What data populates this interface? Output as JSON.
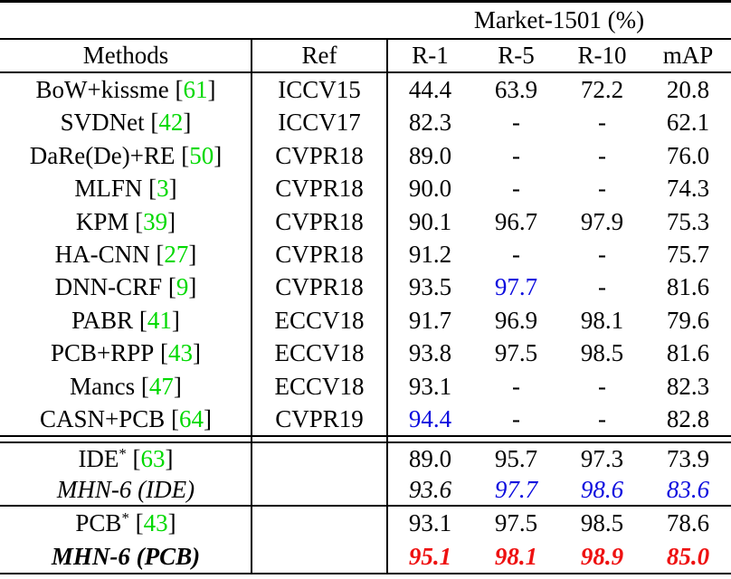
{
  "table": {
    "group_header": "Market-1501 (%)",
    "columns": [
      "Methods",
      "Ref",
      "R-1",
      "R-5",
      "R-10",
      "mAP"
    ],
    "colors": {
      "citation_green": "#00D900",
      "second_best_blue": "#0B0BDE",
      "best_red": "#EE1111",
      "text_black": "#000000",
      "background": "#ffffff"
    },
    "sections": [
      {
        "rows": [
          {
            "method": "BoW+kissme",
            "sup": "",
            "open": " [",
            "cite": "61",
            "close": "]",
            "ref": "ICCV15",
            "values": [
              "44.4",
              "63.9",
              "72.2",
              "20.8"
            ],
            "value_classes": [
              "",
              "",
              "",
              ""
            ],
            "row_class": ""
          },
          {
            "method": "SVDNet",
            "sup": "",
            "open": " [",
            "cite": "42",
            "close": "]",
            "ref": "ICCV17",
            "values": [
              "82.3",
              "-",
              "-",
              "62.1"
            ],
            "value_classes": [
              "",
              "",
              "",
              ""
            ],
            "row_class": ""
          },
          {
            "method": "DaRe(De)+RE",
            "sup": "",
            "open": " [",
            "cite": "50",
            "close": "]",
            "ref": "CVPR18",
            "values": [
              "89.0",
              "-",
              "-",
              "76.0"
            ],
            "value_classes": [
              "",
              "",
              "",
              ""
            ],
            "row_class": ""
          },
          {
            "method": "MLFN",
            "sup": "",
            "open": " [",
            "cite": "3",
            "close": "]",
            "ref": "CVPR18",
            "values": [
              "90.0",
              "-",
              "-",
              "74.3"
            ],
            "value_classes": [
              "",
              "",
              "",
              ""
            ],
            "row_class": ""
          },
          {
            "method": "KPM",
            "sup": "",
            "open": " [",
            "cite": "39",
            "close": "]",
            "ref": "CVPR18",
            "values": [
              "90.1",
              "96.7",
              "97.9",
              "75.3"
            ],
            "value_classes": [
              "",
              "",
              "",
              ""
            ],
            "row_class": ""
          },
          {
            "method": "HA-CNN",
            "sup": "",
            "open": " [",
            "cite": "27",
            "close": "]",
            "ref": "CVPR18",
            "values": [
              "91.2",
              "-",
              "-",
              "75.7"
            ],
            "value_classes": [
              "",
              "",
              "",
              ""
            ],
            "row_class": ""
          },
          {
            "method": "DNN-CRF",
            "sup": "",
            "open": " [",
            "cite": "9",
            "close": "]",
            "ref": "CVPR18",
            "values": [
              "93.5",
              "97.7",
              "-",
              "81.6"
            ],
            "value_classes": [
              "",
              "second",
              "",
              ""
            ],
            "row_class": ""
          },
          {
            "method": "PABR",
            "sup": "",
            "open": " [",
            "cite": "41",
            "close": "]",
            "ref": "ECCV18",
            "values": [
              "91.7",
              "96.9",
              "98.1",
              "79.6"
            ],
            "value_classes": [
              "",
              "",
              "",
              ""
            ],
            "row_class": ""
          },
          {
            "method": "PCB+RPP",
            "sup": "",
            "open": " [",
            "cite": "43",
            "close": "]",
            "ref": "ECCV18",
            "values": [
              "93.8",
              "97.5",
              "98.5",
              "81.6"
            ],
            "value_classes": [
              "",
              "",
              "",
              ""
            ],
            "row_class": ""
          },
          {
            "method": "Mancs",
            "sup": "",
            "open": " [",
            "cite": "47",
            "close": "]",
            "ref": "ECCV18",
            "values": [
              "93.1",
              "-",
              "-",
              "82.3"
            ],
            "value_classes": [
              "",
              "",
              "",
              ""
            ],
            "row_class": ""
          },
          {
            "method": "CASN+PCB",
            "sup": "",
            "open": " [",
            "cite": "64",
            "close": "]",
            "ref": "CVPR19",
            "values": [
              "94.4",
              "-",
              "-",
              "82.8"
            ],
            "value_classes": [
              "second",
              "",
              "",
              ""
            ],
            "row_class": ""
          }
        ]
      },
      {
        "rows": [
          {
            "method": "IDE",
            "sup": "*",
            "open": " [",
            "cite": "63",
            "close": "]",
            "ref": "",
            "values": [
              "89.0",
              "95.7",
              "97.3",
              "73.9"
            ],
            "value_classes": [
              "",
              "",
              "",
              ""
            ],
            "row_class": ""
          },
          {
            "method": "MHN-6 (IDE)",
            "sup": "",
            "open": "",
            "cite": "",
            "close": "",
            "ref": "",
            "values": [
              "93.6",
              "97.7",
              "98.6",
              "83.6"
            ],
            "value_classes": [
              "",
              "second",
              "second",
              "second"
            ],
            "row_class": "italic"
          }
        ]
      },
      {
        "rows": [
          {
            "method": "PCB",
            "sup": "*",
            "open": " [",
            "cite": "43",
            "close": "]",
            "ref": "",
            "values": [
              "93.1",
              "97.5",
              "98.5",
              "78.6"
            ],
            "value_classes": [
              "",
              "",
              "",
              ""
            ],
            "row_class": ""
          },
          {
            "method": "MHN-6 (PCB)",
            "sup": "",
            "open": "",
            "cite": "",
            "close": "",
            "ref": "",
            "values": [
              "95.1",
              "98.1",
              "98.9",
              "85.0"
            ],
            "value_classes": [
              "best",
              "best",
              "best",
              "best"
            ],
            "row_class": "bold italic"
          }
        ]
      }
    ]
  }
}
